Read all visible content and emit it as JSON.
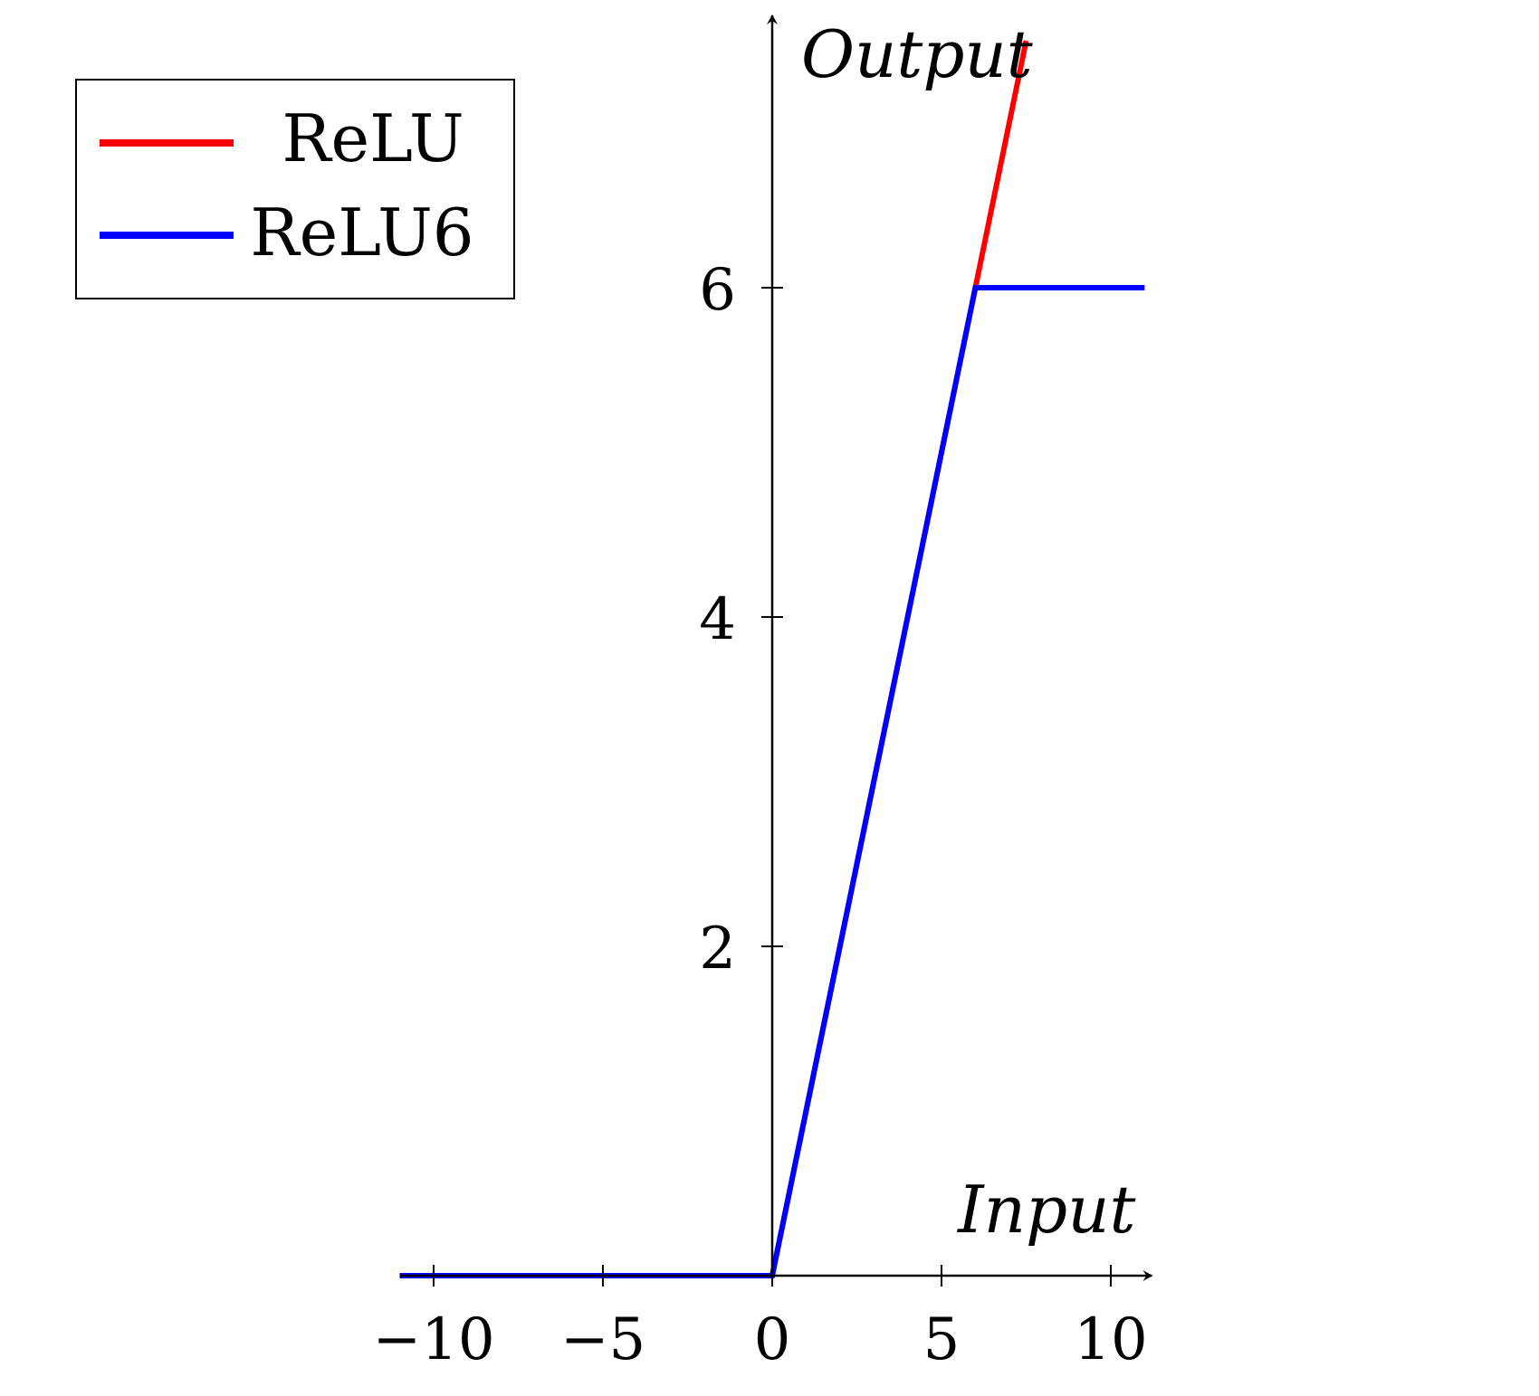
{
  "chart_data": {
    "type": "line",
    "xlabel": "Input",
    "ylabel": "Output",
    "xlim": [
      -11,
      11
    ],
    "ylim": [
      0,
      7.5
    ],
    "x_ticks": [
      -10,
      -5,
      0,
      5,
      10
    ],
    "x_tick_labels": [
      "−10",
      "−5",
      "0",
      "5",
      "10"
    ],
    "y_ticks": [
      2,
      4,
      6
    ],
    "y_tick_labels": [
      "2",
      "4",
      "6"
    ],
    "grid": false,
    "legend_position": "top-left",
    "series": [
      {
        "name": "ReLU",
        "color": "#ff0000",
        "points": [
          [
            -11,
            0
          ],
          [
            0,
            0
          ],
          [
            7.5,
            7.5
          ]
        ]
      },
      {
        "name": "ReLU6",
        "color": "#0000ff",
        "points": [
          [
            -11,
            0
          ],
          [
            0,
            0
          ],
          [
            6,
            6
          ],
          [
            11,
            6
          ]
        ]
      }
    ]
  }
}
